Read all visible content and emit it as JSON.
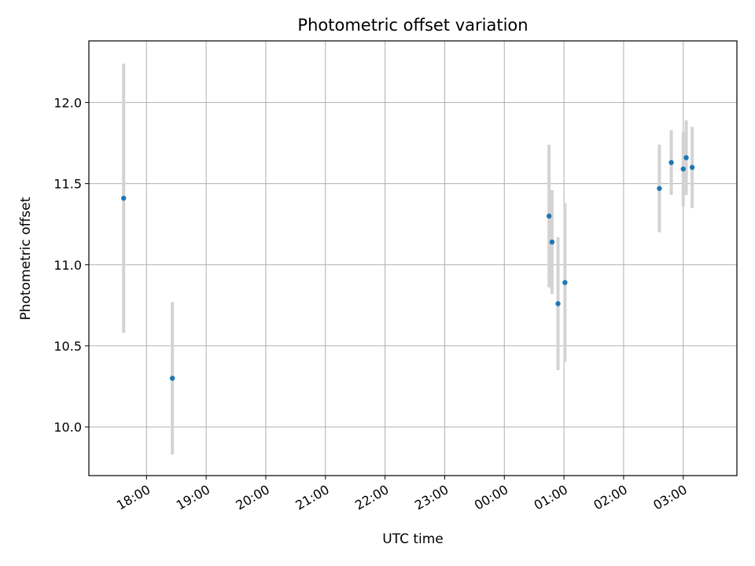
{
  "chart_data": {
    "type": "scatter",
    "title": "Photometric offset variation",
    "xlabel": "UTC time",
    "ylabel": "Photometric offset",
    "x_axis_kind": "time",
    "xlim": [
      "17:02",
      "03:54"
    ],
    "ylim": [
      9.7,
      12.38
    ],
    "x_ticks": [
      "18:00",
      "19:00",
      "20:00",
      "21:00",
      "22:00",
      "23:00",
      "00:00",
      "01:00",
      "02:00",
      "03:00"
    ],
    "y_ticks": [
      "10.0",
      "10.5",
      "11.0",
      "11.5",
      "12.0"
    ],
    "grid": true,
    "legend": "none",
    "colors": {
      "points": "#1f77b4",
      "error_bars": "#d3d3d3",
      "grid": "#b0b0b0"
    },
    "points": [
      {
        "x": "17:37",
        "y": 11.41,
        "err": 0.83
      },
      {
        "x": "18:26",
        "y": 10.3,
        "err": 0.47
      },
      {
        "x": "00:45",
        "y": 11.3,
        "err": 0.44
      },
      {
        "x": "00:48",
        "y": 11.14,
        "err": 0.32
      },
      {
        "x": "00:54",
        "y": 10.76,
        "err": 0.41
      },
      {
        "x": "01:01",
        "y": 10.89,
        "err": 0.49
      },
      {
        "x": "02:36",
        "y": 11.47,
        "err": 0.27
      },
      {
        "x": "02:48",
        "y": 11.63,
        "err": 0.2
      },
      {
        "x": "03:00",
        "y": 11.59,
        "err": 0.23
      },
      {
        "x": "03:03",
        "y": 11.66,
        "err": 0.23
      },
      {
        "x": "03:09",
        "y": 11.6,
        "err": 0.25
      }
    ]
  }
}
